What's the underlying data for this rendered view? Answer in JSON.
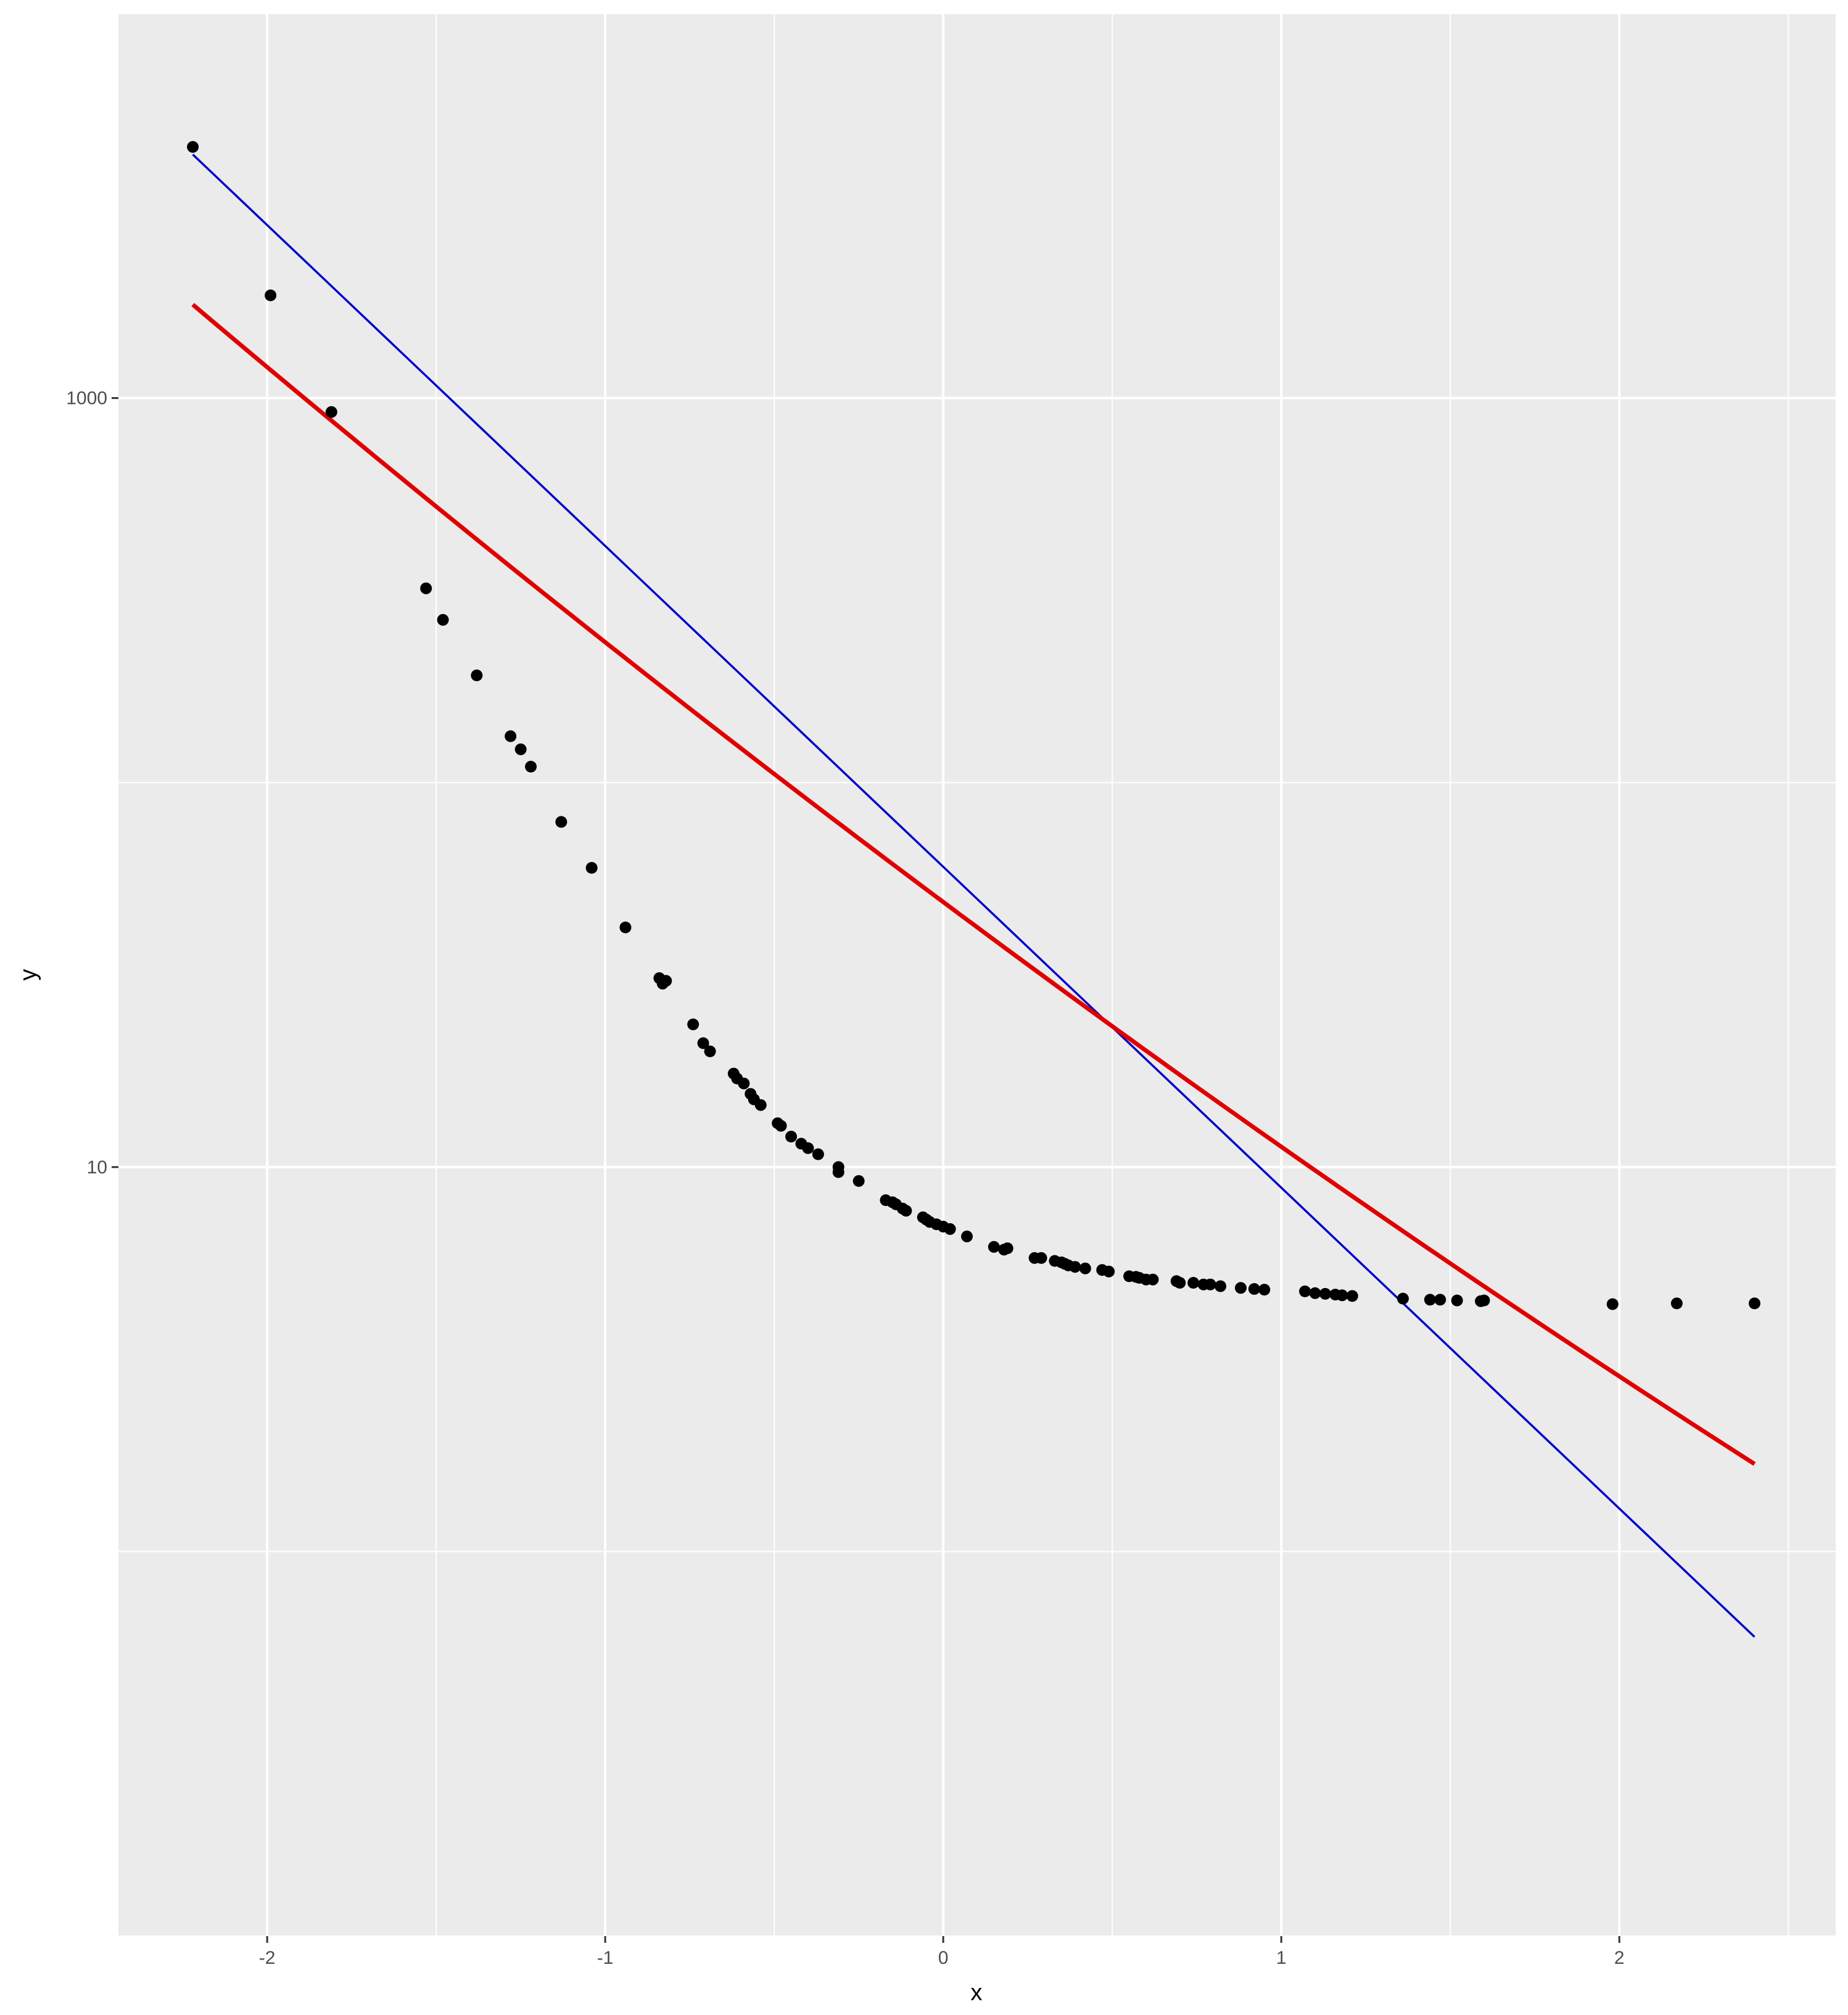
{
  "chart_data": {
    "type": "scatter",
    "title": "",
    "xlabel": "x",
    "ylabel": "y",
    "x_ticks": [
      -2,
      -1,
      0,
      1,
      2
    ],
    "x_tick_labels": [
      "-2",
      "-1",
      "0",
      "1",
      "2"
    ],
    "y_scale": "log10",
    "y_ticks": [
      10,
      1000
    ],
    "y_tick_labels": [
      "10",
      "1000"
    ],
    "xlim": [
      -2.44,
      2.64
    ],
    "ylim": [
      0.1,
      10000
    ],
    "grid": true,
    "legend": "none",
    "colors": {
      "panel": "#ebebeb",
      "grid": "#ffffff",
      "points": "#000000",
      "line_blue": "#0000cd",
      "line_red": "#e00000",
      "tick_text": "#4d4d4d",
      "tick_mark": "#333333"
    },
    "points": [
      [
        -2.22,
        4500
      ],
      [
        -1.99,
        1850
      ],
      [
        -1.81,
        920
      ],
      [
        -1.53,
        320
      ],
      [
        -1.48,
        265
      ],
      [
        -1.38,
        190
      ],
      [
        -1.28,
        132
      ],
      [
        -1.25,
        122
      ],
      [
        -1.22,
        110
      ],
      [
        -1.13,
        79
      ],
      [
        -1.04,
        60
      ],
      [
        -0.94,
        42
      ],
      [
        -0.84,
        31
      ],
      [
        -0.83,
        30
      ],
      [
        -0.82,
        30.5
      ],
      [
        -0.74,
        23.5
      ],
      [
        -0.71,
        21
      ],
      [
        -0.69,
        20
      ],
      [
        -0.62,
        17.5
      ],
      [
        -0.61,
        17
      ],
      [
        -0.59,
        16.5
      ],
      [
        -0.57,
        15.5
      ],
      [
        -0.56,
        15
      ],
      [
        -0.54,
        14.5
      ],
      [
        -0.49,
        13
      ],
      [
        -0.48,
        12.8
      ],
      [
        -0.45,
        12
      ],
      [
        -0.42,
        11.5
      ],
      [
        -0.4,
        11.2
      ],
      [
        -0.37,
        10.8
      ],
      [
        -0.31,
        10
      ],
      [
        -0.31,
        9.7
      ],
      [
        -0.25,
        9.2
      ],
      [
        -0.17,
        8.2
      ],
      [
        -0.15,
        8.1
      ],
      [
        -0.14,
        8.0
      ],
      [
        -0.12,
        7.8
      ],
      [
        -0.11,
        7.7
      ],
      [
        -0.06,
        7.4
      ],
      [
        -0.05,
        7.3
      ],
      [
        -0.04,
        7.2
      ],
      [
        -0.02,
        7.1
      ],
      [
        0.0,
        7.0
      ],
      [
        0.02,
        6.9
      ],
      [
        0.07,
        6.6
      ],
      [
        0.15,
        6.2
      ],
      [
        0.18,
        6.1
      ],
      [
        0.19,
        6.15
      ],
      [
        0.27,
        5.8
      ],
      [
        0.29,
        5.8
      ],
      [
        0.33,
        5.7
      ],
      [
        0.35,
        5.65
      ],
      [
        0.36,
        5.6
      ],
      [
        0.37,
        5.55
      ],
      [
        0.39,
        5.5
      ],
      [
        0.42,
        5.45
      ],
      [
        0.47,
        5.4
      ],
      [
        0.49,
        5.35
      ],
      [
        0.55,
        5.2
      ],
      [
        0.57,
        5.18
      ],
      [
        0.58,
        5.15
      ],
      [
        0.6,
        5.1
      ],
      [
        0.62,
        5.1
      ],
      [
        0.69,
        5.05
      ],
      [
        0.7,
        5.0
      ],
      [
        0.74,
        5.0
      ],
      [
        0.77,
        4.95
      ],
      [
        0.79,
        4.95
      ],
      [
        0.82,
        4.9
      ],
      [
        0.88,
        4.85
      ],
      [
        0.92,
        4.82
      ],
      [
        0.95,
        4.8
      ],
      [
        1.07,
        4.75
      ],
      [
        1.1,
        4.7
      ],
      [
        1.13,
        4.68
      ],
      [
        1.16,
        4.66
      ],
      [
        1.18,
        4.64
      ],
      [
        1.21,
        4.62
      ],
      [
        1.36,
        4.55
      ],
      [
        1.44,
        4.52
      ],
      [
        1.47,
        4.52
      ],
      [
        1.52,
        4.5
      ],
      [
        1.59,
        4.48
      ],
      [
        1.6,
        4.5
      ],
      [
        1.98,
        4.4
      ],
      [
        2.17,
        4.42
      ],
      [
        2.4,
        4.42
      ]
    ],
    "series": [
      {
        "type": "line",
        "color": "#0000cd",
        "x": [
          -2.22,
          2.4
        ],
        "y": [
          4300,
          0.6
        ]
      },
      {
        "type": "line",
        "color": "#e00000",
        "x": [
          -2.22,
          2.4
        ],
        "y": [
          1750,
          1.69
        ]
      }
    ]
  }
}
